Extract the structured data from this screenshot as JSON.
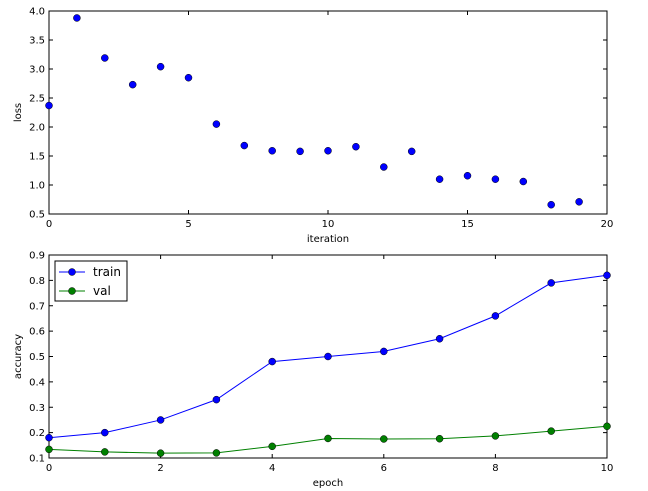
{
  "chart_data": [
    {
      "type": "scatter",
      "xlabel": "iteration",
      "ylabel": "loss",
      "xlim": [
        0,
        20
      ],
      "ylim": [
        0.5,
        4.0
      ],
      "xticks": [
        "0",
        "5",
        "10",
        "15",
        "20"
      ],
      "yticks": [
        "0.5",
        "1.0",
        "1.5",
        "2.0",
        "2.5",
        "3.0",
        "3.5",
        "4.0"
      ],
      "grid": false,
      "color": "#0000ff",
      "x": [
        0,
        1,
        2,
        3,
        4,
        5,
        6,
        7,
        8,
        9,
        10,
        11,
        12,
        13,
        14,
        15,
        16,
        17,
        18,
        19
      ],
      "y": [
        2.37,
        3.88,
        3.19,
        2.73,
        3.04,
        2.85,
        2.05,
        1.68,
        1.59,
        1.58,
        1.59,
        1.66,
        1.31,
        1.58,
        1.1,
        1.16,
        1.1,
        1.06,
        0.66,
        0.71
      ]
    },
    {
      "type": "line",
      "xlabel": "epoch",
      "ylabel": "accuracy",
      "xlim": [
        0,
        10
      ],
      "ylim": [
        0.1,
        0.9
      ],
      "xticks": [
        "0",
        "2",
        "4",
        "6",
        "8",
        "10"
      ],
      "yticks": [
        "0.1",
        "0.2",
        "0.3",
        "0.4",
        "0.5",
        "0.6",
        "0.7",
        "0.8",
        "0.9"
      ],
      "grid": false,
      "legend": "top-left",
      "x": [
        0,
        1,
        2,
        3,
        4,
        5,
        6,
        7,
        8,
        9,
        10
      ],
      "series": [
        {
          "name": "train",
          "color": "#0000ff",
          "values": [
            0.18,
            0.2,
            0.25,
            0.33,
            0.48,
            0.5,
            0.52,
            0.57,
            0.66,
            0.79,
            0.82
          ]
        },
        {
          "name": "val",
          "color": "#008000",
          "values": [
            0.134,
            0.124,
            0.119,
            0.12,
            0.146,
            0.177,
            0.175,
            0.176,
            0.187,
            0.206,
            0.225
          ]
        }
      ]
    }
  ]
}
